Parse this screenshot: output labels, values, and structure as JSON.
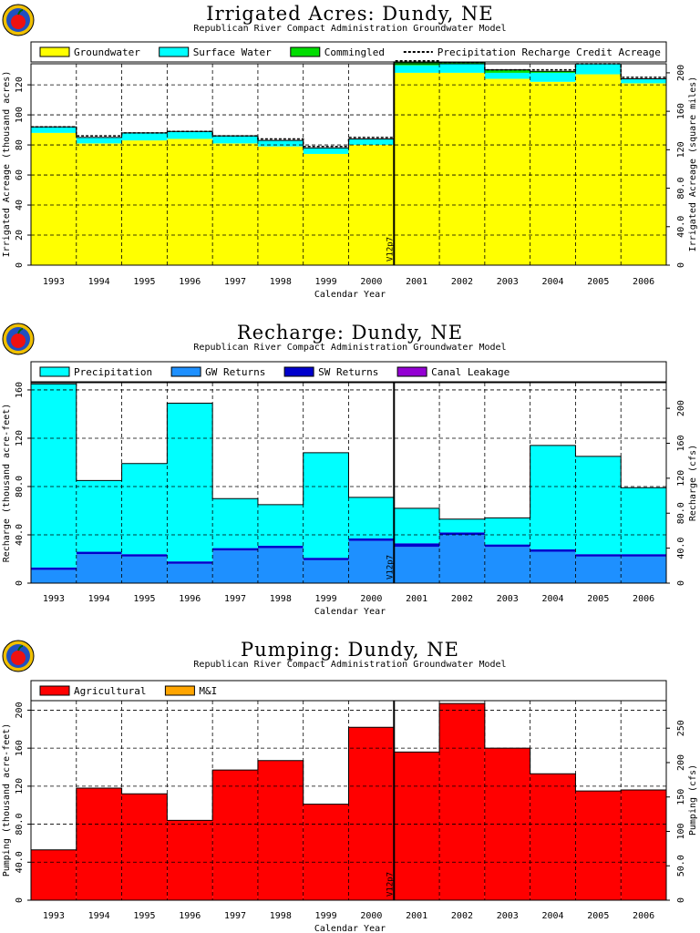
{
  "chart_data": [
    {
      "type": "area",
      "title": "Irrigated Acres: Dundy, NE",
      "subtitle": "Republican River Compact Administration Groundwater Model",
      "xlabel": "Calendar Year",
      "ylabel": "Irrigated Acreage (thousand acres)",
      "y2label": "Irrigated Acreage (square miles)",
      "categories": [
        "1993",
        "1994",
        "1995",
        "1996",
        "1997",
        "1998",
        "1999",
        "2000",
        "2001",
        "2002",
        "2003",
        "2004",
        "2005",
        "2006"
      ],
      "ylim": [
        0,
        134
      ],
      "yticks": [
        0,
        20,
        40,
        60,
        80,
        100,
        120
      ],
      "yticklabels": [
        "0",
        "20",
        "40",
        "60",
        "80",
        "100",
        "120"
      ],
      "y2lim": [
        0,
        209.4
      ],
      "y2ticks": [
        0,
        40,
        80,
        120,
        160,
        200
      ],
      "y2ticklabels": [
        "0",
        "40.0",
        "80.0",
        "120",
        "160",
        "200"
      ],
      "grid": true,
      "legend_position": "top",
      "stacked": true,
      "series": [
        {
          "name": "Groundwater",
          "color": "#ffff00",
          "values": [
            88,
            81,
            83,
            84,
            81,
            79,
            74,
            80,
            128,
            128,
            124,
            122,
            127,
            121
          ]
        },
        {
          "name": "Surface Water",
          "color": "#00ffff",
          "values": [
            4,
            4,
            5,
            5,
            5,
            4,
            4,
            4,
            5,
            6,
            4,
            6,
            7,
            3
          ]
        },
        {
          "name": "Commingled",
          "color": "#00dd00",
          "values": [
            0,
            0,
            0,
            0,
            0,
            0,
            0,
            0,
            2,
            1,
            2,
            1,
            0,
            0
          ]
        }
      ],
      "line_series": [
        {
          "name": "Precipitation Recharge Credit Acreage",
          "style": "dashed",
          "values": [
            92,
            86,
            88,
            89,
            86,
            84,
            79,
            85,
            136,
            135,
            130,
            130,
            134,
            125
          ]
        }
      ],
      "marker": {
        "label": "V12p7",
        "position": "between 2000 and 2001"
      }
    },
    {
      "type": "area",
      "title": "Recharge: Dundy, NE",
      "subtitle": "Republican River Compact Administration Groundwater Model",
      "xlabel": "Calendar Year",
      "ylabel": "Recharge (thousand acre-feet)",
      "y2label": "Recharge (cfs)",
      "categories": [
        "1993",
        "1994",
        "1995",
        "1996",
        "1997",
        "1998",
        "1999",
        "2000",
        "2001",
        "2002",
        "2003",
        "2004",
        "2005",
        "2006"
      ],
      "ylim": [
        0,
        166
      ],
      "yticks": [
        0,
        40,
        80,
        120,
        160
      ],
      "yticklabels": [
        "0",
        "40.0",
        "80.0",
        "120",
        "160"
      ],
      "y2lim": [
        0,
        229.3
      ],
      "y2ticks": [
        0,
        40,
        80,
        120,
        160,
        200
      ],
      "y2ticklabels": [
        "0",
        "40.0",
        "80.0",
        "120",
        "160",
        "200"
      ],
      "grid": true,
      "legend_position": "top",
      "stacked": true,
      "series": [
        {
          "name": "GW Returns",
          "color": "#1e90ff",
          "values": [
            11,
            24,
            22,
            16,
            27,
            29,
            19,
            35,
            30,
            40,
            30,
            26,
            22,
            22
          ]
        },
        {
          "name": "SW Returns",
          "color": "#0000cc",
          "values": [
            2,
            2,
            2,
            2,
            2,
            2,
            2,
            2,
            3,
            2,
            2,
            2,
            2,
            2
          ]
        },
        {
          "name": "Canal Leakage",
          "color": "#9400d3",
          "values": [
            0,
            0,
            0,
            0,
            0,
            0,
            0,
            0,
            0,
            0,
            0,
            0,
            0,
            0
          ]
        },
        {
          "name": "Precipitation",
          "color": "#00ffff",
          "values": [
            152,
            59,
            75,
            131,
            41,
            34,
            87,
            34,
            29,
            11,
            22,
            86,
            81,
            55
          ]
        }
      ],
      "legend_order": [
        "Precipitation",
        "GW Returns",
        "SW Returns",
        "Canal Leakage"
      ],
      "marker": {
        "label": "V12p7",
        "position": "between 2000 and 2001"
      }
    },
    {
      "type": "area",
      "title": "Pumping: Dundy, NE",
      "subtitle": "Republican River Compact Administration Groundwater Model",
      "xlabel": "Calendar Year",
      "ylabel": "Pumping (thousand acre-feet)",
      "y2label": "Pumping (cfs)",
      "categories": [
        "1993",
        "1994",
        "1995",
        "1996",
        "1997",
        "1998",
        "1999",
        "2000",
        "2001",
        "2002",
        "2003",
        "2004",
        "2005",
        "2006"
      ],
      "ylim": [
        0,
        210
      ],
      "yticks": [
        0,
        40,
        80,
        120,
        160,
        200
      ],
      "yticklabels": [
        "0",
        "40.0",
        "80.0",
        "120",
        "160",
        "200"
      ],
      "y2lim": [
        0,
        290
      ],
      "y2ticks": [
        0,
        50,
        100,
        150,
        200,
        250
      ],
      "y2ticklabels": [
        "0",
        "50.0",
        "100",
        "150",
        "200",
        "250"
      ],
      "grid": true,
      "legend_position": "top",
      "stacked": true,
      "series": [
        {
          "name": "Agricultural",
          "color": "#ff0000",
          "values": [
            53,
            118,
            112,
            84,
            137,
            147,
            101,
            182,
            156,
            207,
            160,
            133,
            115,
            116
          ]
        },
        {
          "name": "M&I",
          "color": "#ffa500",
          "values": [
            0,
            0,
            0,
            0,
            0,
            0,
            0,
            0,
            0,
            0,
            0,
            0,
            0,
            0
          ]
        }
      ],
      "marker": {
        "label": "V12p7",
        "position": "between 2000 and 2001"
      }
    }
  ]
}
